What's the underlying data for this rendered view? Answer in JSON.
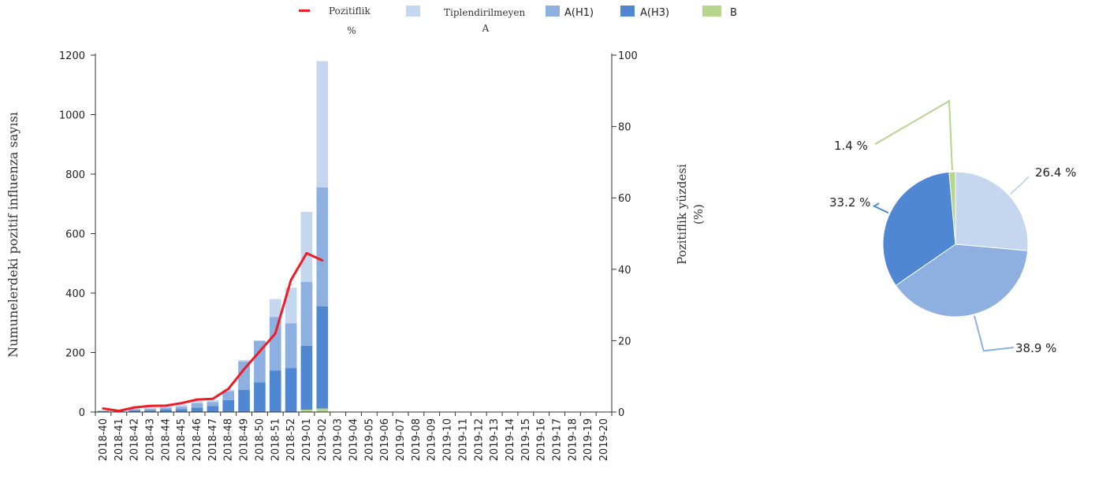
{
  "chart_data": [
    {
      "type": "bar",
      "stacked": true,
      "ylabel": "Numunelerdeki pozitif influenza sayısı",
      "y2label_line1": "Pozitiflik yüzdesi",
      "y2label_line2": "(%)",
      "ylim": [
        0,
        1200
      ],
      "y2lim": [
        0,
        100
      ],
      "yticks": [
        0,
        200,
        400,
        600,
        800,
        1000,
        1200
      ],
      "y2ticks": [
        0,
        20,
        40,
        60,
        80,
        100
      ],
      "legend_position": "top",
      "legend": [
        {
          "name_line1": "Pozitiflik",
          "name_line2": "%",
          "color": "#ee1c25",
          "kind": "line"
        },
        {
          "name_line1": "Tiplendirilmeyen",
          "name_line2": "A",
          "color": "#c5d6ef",
          "kind": "bar"
        },
        {
          "name_line1": "A(H1)",
          "name_line2": "",
          "color": "#8eb0e1",
          "kind": "bar"
        },
        {
          "name_line1": "A(H3)",
          "name_line2": "",
          "color": "#4f87d2",
          "kind": "bar"
        },
        {
          "name_line1": "B",
          "name_line2": "",
          "color": "#b6d58d",
          "kind": "bar"
        }
      ],
      "categories": [
        "2018-40",
        "2018-41",
        "2018-42",
        "2018-43",
        "2018-44",
        "2018-45",
        "2018-46",
        "2018-47",
        "2018-48",
        "2018-49",
        "2018-50",
        "2018-51",
        "2018-52",
        "2019-01",
        "2019-02",
        "2019-03",
        "2019-04",
        "2019-05",
        "2019-06",
        "2019-07",
        "2019-08",
        "2019-09",
        "2019-10",
        "2019-11",
        "2019-12",
        "2019-13",
        "2019-14",
        "2019-15",
        "2019-16",
        "2019-17",
        "2019-18",
        "2019-19",
        "2019-20"
      ],
      "series": [
        {
          "stack_key": "b",
          "color": "#b6d58d",
          "values": [
            0,
            0,
            0,
            0,
            0,
            0,
            0,
            0,
            0,
            0,
            0,
            0,
            0,
            8,
            12,
            0,
            0,
            0,
            0,
            0,
            0,
            0,
            0,
            0,
            0,
            0,
            0,
            0,
            0,
            0,
            0,
            0,
            0
          ]
        },
        {
          "stack_key": "h3",
          "color": "#4f87d2",
          "values": [
            3,
            2,
            6,
            6,
            8,
            10,
            15,
            20,
            40,
            75,
            100,
            140,
            148,
            215,
            343,
            0,
            0,
            0,
            0,
            0,
            0,
            0,
            0,
            0,
            0,
            0,
            0,
            0,
            0,
            0,
            0,
            0,
            0
          ]
        },
        {
          "stack_key": "h1",
          "color": "#8eb0e1",
          "values": [
            2,
            1,
            4,
            5,
            7,
            8,
            15,
            14,
            30,
            95,
            140,
            180,
            150,
            215,
            400,
            0,
            0,
            0,
            0,
            0,
            0,
            0,
            0,
            0,
            0,
            0,
            0,
            0,
            0,
            0,
            0,
            0,
            0
          ]
        },
        {
          "stack_key": "untyped",
          "color": "#c5d6ef",
          "values": [
            0,
            0,
            2,
            3,
            5,
            7,
            8,
            6,
            5,
            5,
            0,
            60,
            120,
            235,
            425,
            0,
            0,
            0,
            0,
            0,
            0,
            0,
            0,
            0,
            0,
            0,
            0,
            0,
            0,
            0,
            0,
            0,
            0
          ]
        }
      ],
      "line": {
        "color": "#ee1c25",
        "axis": "right",
        "values": [
          1,
          0.3,
          1.3,
          1.7,
          1.8,
          2.5,
          3.5,
          3.7,
          6.5,
          12,
          17,
          22,
          37,
          44.5,
          42.5
        ]
      }
    },
    {
      "type": "pie",
      "slices": [
        {
          "label": "26.4 %",
          "value": 26.4,
          "color": "#c5d6ef",
          "leader": "#c5d6ef"
        },
        {
          "label": "38.9 %",
          "value": 38.9,
          "color": "#8eb0e1",
          "leader": "#8eb0e1"
        },
        {
          "label": "33.2 %",
          "value": 33.2,
          "color": "#4f87d2",
          "leader": "#4f87d2"
        },
        {
          "label": "1.4 %",
          "value": 1.4,
          "color": "#b6d58d",
          "leader": "#b6d58d"
        }
      ]
    }
  ]
}
